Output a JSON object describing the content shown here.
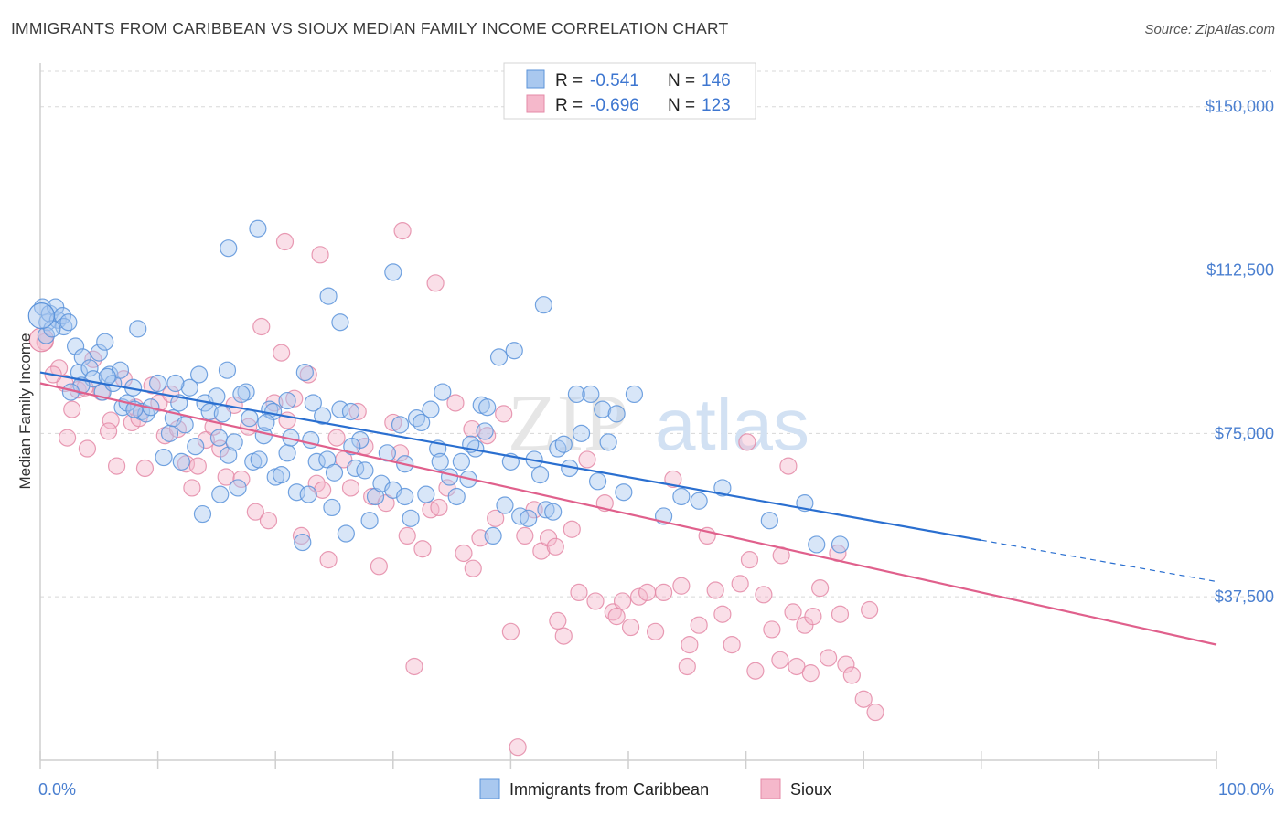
{
  "title": "IMMIGRANTS FROM CARIBBEAN VS SIOUX MEDIAN FAMILY INCOME CORRELATION CHART",
  "source": "Source: ZipAtlas.com",
  "watermark": {
    "zip": "ZIP",
    "atlas": "atlas"
  },
  "colors": {
    "blue_fill": "#a9c8ef",
    "blue_stroke": "#5b93da",
    "blue_line": "#2a6fd0",
    "pink_fill": "#f5b8cb",
    "pink_stroke": "#e48aa7",
    "pink_line": "#e0608c",
    "grid": "#d8d8d8",
    "axis_text": "#4a7fd0"
  },
  "legend": {
    "rows": [
      {
        "r_label": "R = ",
        "r_value": "-0.541",
        "n_label": "N = ",
        "n_value": "146",
        "series": "blue"
      },
      {
        "r_label": "R = ",
        "r_value": "-0.696",
        "n_label": "N = ",
        "n_value": "123",
        "series": "pink"
      }
    ]
  },
  "chart_data": {
    "type": "scatter",
    "title": "IMMIGRANTS FROM CARIBBEAN VS SIOUX MEDIAN FAMILY INCOME CORRELATION CHART",
    "xlabel": "",
    "ylabel": "Median Family Income",
    "xlim": [
      0,
      100
    ],
    "ylim": [
      0,
      160000
    ],
    "x_tick_labels": [
      "0.0%",
      "100.0%"
    ],
    "y_ticks": [
      37500,
      75000,
      112500,
      150000
    ],
    "y_tick_labels": [
      "$37,500",
      "$75,000",
      "$112,500",
      "$150,000"
    ],
    "grid": "horizontal dashed",
    "legend_position": "top-center",
    "series": [
      {
        "name": "Immigrants from Caribbean",
        "color": "blue",
        "trend": {
          "x": [
            0,
            80
          ],
          "y": [
            89000,
            50500
          ],
          "dashed_extension_to": [
            100,
            41000
          ]
        },
        "points": [
          [
            0.2,
            104000
          ],
          [
            0.6,
            100500
          ],
          [
            0.8,
            102500
          ],
          [
            1.3,
            104000
          ],
          [
            1.5,
            101000
          ],
          [
            1.9,
            102000
          ],
          [
            2.0,
            99500
          ],
          [
            2.4,
            100500
          ],
          [
            3.0,
            95000
          ],
          [
            3.3,
            89000
          ],
          [
            3.6,
            92500
          ],
          [
            4.2,
            90000
          ],
          [
            4.5,
            87500
          ],
          [
            5.0,
            93500
          ],
          [
            5.3,
            84500
          ],
          [
            5.5,
            96000
          ],
          [
            5.9,
            88500
          ],
          [
            6.2,
            86500
          ],
          [
            6.8,
            89500
          ],
          [
            7.0,
            81000
          ],
          [
            7.4,
            82000
          ],
          [
            7.9,
            85500
          ],
          [
            8.3,
            99000
          ],
          [
            8.6,
            80000
          ],
          [
            9.0,
            79500
          ],
          [
            9.4,
            81000
          ],
          [
            10.0,
            86500
          ],
          [
            10.5,
            69500
          ],
          [
            11.0,
            75000
          ],
          [
            11.3,
            78500
          ],
          [
            11.8,
            82000
          ],
          [
            12.3,
            77000
          ],
          [
            12.7,
            85500
          ],
          [
            13.2,
            72000
          ],
          [
            13.5,
            88500
          ],
          [
            14.0,
            82000
          ],
          [
            14.4,
            80000
          ],
          [
            15.0,
            83500
          ],
          [
            15.2,
            74000
          ],
          [
            15.5,
            79500
          ],
          [
            16.0,
            70000
          ],
          [
            16.5,
            73000
          ],
          [
            16.8,
            62500
          ],
          [
            17.5,
            84500
          ],
          [
            17.8,
            78500
          ],
          [
            18.1,
            68500
          ],
          [
            18.6,
            69000
          ],
          [
            19.0,
            74500
          ],
          [
            19.5,
            80500
          ],
          [
            19.8,
            80000
          ],
          [
            20.0,
            65000
          ],
          [
            20.5,
            65500
          ],
          [
            21.0,
            70500
          ],
          [
            21.3,
            74000
          ],
          [
            21.8,
            61500
          ],
          [
            22.3,
            50000
          ],
          [
            22.8,
            61000
          ],
          [
            23.2,
            82000
          ],
          [
            23.5,
            68500
          ],
          [
            24.0,
            79000
          ],
          [
            24.4,
            69000
          ],
          [
            24.8,
            58000
          ],
          [
            25.0,
            66000
          ],
          [
            25.5,
            80500
          ],
          [
            26.0,
            52000
          ],
          [
            26.4,
            80000
          ],
          [
            26.8,
            67000
          ],
          [
            27.2,
            73500
          ],
          [
            27.6,
            66500
          ],
          [
            28.0,
            55000
          ],
          [
            28.5,
            60500
          ],
          [
            29.0,
            63500
          ],
          [
            29.5,
            70500
          ],
          [
            30.0,
            62000
          ],
          [
            30.6,
            77000
          ],
          [
            31.0,
            60500
          ],
          [
            31.5,
            55500
          ],
          [
            32.0,
            78500
          ],
          [
            32.4,
            77500
          ],
          [
            32.8,
            61000
          ],
          [
            33.2,
            80500
          ],
          [
            33.8,
            71500
          ],
          [
            34.2,
            84500
          ],
          [
            34.8,
            65000
          ],
          [
            35.4,
            60500
          ],
          [
            35.8,
            68500
          ],
          [
            36.4,
            64500
          ],
          [
            37.0,
            71500
          ],
          [
            37.5,
            81500
          ],
          [
            38.0,
            81000
          ],
          [
            38.5,
            51500
          ],
          [
            39.0,
            92500
          ],
          [
            39.5,
            58500
          ],
          [
            40.0,
            68500
          ],
          [
            40.3,
            94000
          ],
          [
            40.8,
            56000
          ],
          [
            41.5,
            55500
          ],
          [
            42.0,
            69000
          ],
          [
            42.5,
            65500
          ],
          [
            43.0,
            57500
          ],
          [
            43.6,
            57000
          ],
          [
            44.0,
            71500
          ],
          [
            45.0,
            67000
          ],
          [
            45.6,
            84000
          ],
          [
            46.0,
            75000
          ],
          [
            46.8,
            84000
          ],
          [
            47.4,
            64000
          ],
          [
            47.8,
            80500
          ],
          [
            48.3,
            73000
          ],
          [
            49.0,
            79500
          ],
          [
            49.6,
            61500
          ],
          [
            50.5,
            84000
          ],
          [
            53.0,
            56000
          ],
          [
            54.5,
            60500
          ],
          [
            56.0,
            59500
          ],
          [
            58.0,
            62500
          ],
          [
            62.0,
            55000
          ],
          [
            65.0,
            59000
          ],
          [
            66.0,
            49500
          ],
          [
            68.0,
            49500
          ],
          [
            0.5,
            97500
          ],
          [
            1.0,
            99000
          ],
          [
            23.0,
            73500
          ],
          [
            30.0,
            112000
          ],
          [
            24.5,
            106500
          ],
          [
            18.5,
            122000
          ],
          [
            16.0,
            117500
          ],
          [
            21.0,
            82500
          ],
          [
            25.5,
            100500
          ],
          [
            31.0,
            68000
          ],
          [
            34.0,
            68500
          ],
          [
            12.0,
            68500
          ],
          [
            13.8,
            56500
          ],
          [
            15.3,
            61000
          ],
          [
            17.1,
            84000
          ],
          [
            44.5,
            72500
          ],
          [
            42.8,
            104500
          ],
          [
            37.8,
            75500
          ],
          [
            36.6,
            72500
          ],
          [
            26.5,
            72000
          ],
          [
            22.5,
            89000
          ],
          [
            19.2,
            77500
          ],
          [
            15.9,
            89500
          ],
          [
            11.5,
            86500
          ],
          [
            8.0,
            80500
          ],
          [
            5.7,
            88000
          ],
          [
            3.5,
            86000
          ],
          [
            2.6,
            84500
          ]
        ]
      },
      {
        "name": "Sioux",
        "color": "pink",
        "trend": {
          "x": [
            0,
            100
          ],
          "y": [
            86500,
            26500
          ]
        },
        "points": [
          [
            0.4,
            96000
          ],
          [
            1.6,
            90000
          ],
          [
            2.1,
            86500
          ],
          [
            2.7,
            80500
          ],
          [
            3.2,
            85000
          ],
          [
            3.8,
            85500
          ],
          [
            4.5,
            92000
          ],
          [
            5.2,
            84500
          ],
          [
            6.0,
            78000
          ],
          [
            6.5,
            67500
          ],
          [
            7.1,
            87500
          ],
          [
            7.8,
            77500
          ],
          [
            8.4,
            78500
          ],
          [
            8.9,
            67000
          ],
          [
            9.5,
            86000
          ],
          [
            10.1,
            82000
          ],
          [
            10.6,
            74500
          ],
          [
            11.1,
            84000
          ],
          [
            11.7,
            76000
          ],
          [
            12.4,
            68000
          ],
          [
            12.9,
            62500
          ],
          [
            13.4,
            67500
          ],
          [
            14.1,
            73500
          ],
          [
            14.7,
            76500
          ],
          [
            15.3,
            71500
          ],
          [
            15.8,
            65000
          ],
          [
            16.5,
            81500
          ],
          [
            17.1,
            64500
          ],
          [
            17.7,
            76500
          ],
          [
            18.3,
            57000
          ],
          [
            18.8,
            99500
          ],
          [
            19.4,
            55000
          ],
          [
            19.9,
            82000
          ],
          [
            20.5,
            93500
          ],
          [
            21.0,
            78000
          ],
          [
            21.6,
            83000
          ],
          [
            22.2,
            51500
          ],
          [
            22.8,
            88500
          ],
          [
            23.5,
            63500
          ],
          [
            24.0,
            62000
          ],
          [
            24.5,
            46000
          ],
          [
            25.2,
            74000
          ],
          [
            25.8,
            69000
          ],
          [
            26.4,
            62500
          ],
          [
            27.0,
            80000
          ],
          [
            27.6,
            72000
          ],
          [
            28.2,
            60500
          ],
          [
            28.8,
            44500
          ],
          [
            29.4,
            59000
          ],
          [
            30.0,
            77500
          ],
          [
            30.6,
            70500
          ],
          [
            31.2,
            51500
          ],
          [
            31.8,
            21500
          ],
          [
            32.5,
            48500
          ],
          [
            33.2,
            57500
          ],
          [
            33.9,
            58000
          ],
          [
            34.6,
            62500
          ],
          [
            35.3,
            82000
          ],
          [
            36.0,
            47500
          ],
          [
            36.7,
            76000
          ],
          [
            37.4,
            51000
          ],
          [
            38.0,
            74500
          ],
          [
            38.7,
            55500
          ],
          [
            39.4,
            79500
          ],
          [
            40.0,
            29500
          ],
          [
            40.6,
            3000
          ],
          [
            41.2,
            51500
          ],
          [
            42.0,
            57500
          ],
          [
            42.6,
            48000
          ],
          [
            43.2,
            51000
          ],
          [
            43.8,
            49000
          ],
          [
            44.5,
            28500
          ],
          [
            45.2,
            53000
          ],
          [
            45.8,
            38500
          ],
          [
            46.5,
            69000
          ],
          [
            47.2,
            36500
          ],
          [
            48.0,
            59000
          ],
          [
            48.7,
            34000
          ],
          [
            49.5,
            36500
          ],
          [
            50.2,
            30500
          ],
          [
            50.9,
            37500
          ],
          [
            51.6,
            38500
          ],
          [
            52.3,
            29500
          ],
          [
            53.0,
            38500
          ],
          [
            53.8,
            64500
          ],
          [
            54.5,
            40000
          ],
          [
            55.2,
            26500
          ],
          [
            56.0,
            31000
          ],
          [
            56.7,
            51500
          ],
          [
            57.4,
            39000
          ],
          [
            58.0,
            33500
          ],
          [
            58.8,
            26500
          ],
          [
            59.5,
            40500
          ],
          [
            60.1,
            73000
          ],
          [
            60.8,
            20500
          ],
          [
            61.5,
            38000
          ],
          [
            62.2,
            30000
          ],
          [
            62.9,
            23000
          ],
          [
            63.6,
            67500
          ],
          [
            64.3,
            21500
          ],
          [
            65.0,
            31000
          ],
          [
            65.7,
            33000
          ],
          [
            66.3,
            39500
          ],
          [
            67.0,
            23500
          ],
          [
            67.8,
            47500
          ],
          [
            68.5,
            22000
          ],
          [
            69.0,
            19500
          ],
          [
            70.0,
            14000
          ],
          [
            71.0,
            11000
          ],
          [
            20.8,
            119000
          ],
          [
            23.8,
            116000
          ],
          [
            30.8,
            121500
          ],
          [
            33.6,
            109500
          ],
          [
            63.0,
            47000
          ],
          [
            36.8,
            44000
          ],
          [
            44.0,
            32000
          ],
          [
            8.1,
            81000
          ],
          [
            5.8,
            75500
          ],
          [
            4.0,
            71500
          ],
          [
            2.3,
            74000
          ],
          [
            1.1,
            88500
          ],
          [
            49.0,
            33000
          ],
          [
            55.0,
            21500
          ],
          [
            60.3,
            46000
          ],
          [
            65.5,
            20000
          ],
          [
            68.0,
            33500
          ],
          [
            64.0,
            34000
          ],
          [
            70.5,
            34500
          ]
        ]
      }
    ]
  },
  "bottom_legend": [
    {
      "label": "Immigrants from Caribbean",
      "series": "blue"
    },
    {
      "label": "Sioux",
      "series": "pink"
    }
  ]
}
